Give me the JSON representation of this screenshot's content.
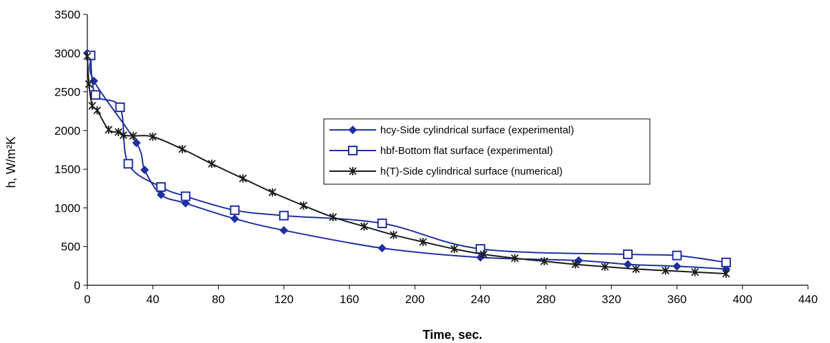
{
  "chart_data": {
    "type": "line",
    "title": "",
    "xlabel": "Time, sec.",
    "ylabel": "h, W/m²K",
    "xlim": [
      0,
      440
    ],
    "ylim": [
      0,
      3500
    ],
    "xticks": [
      0,
      40,
      80,
      120,
      160,
      200,
      240,
      280,
      320,
      360,
      400,
      440
    ],
    "yticks": [
      0,
      500,
      1000,
      1500,
      2000,
      2500,
      3000,
      3500
    ],
    "grid": false,
    "legend_position": "center-right",
    "series": [
      {
        "name": "hcy-Side cylindrical surface (experimental)",
        "color": "#1f2fa0",
        "marker": "diamond",
        "x": [
          0,
          2,
          4,
          30,
          35,
          45,
          60,
          90,
          120,
          180,
          240,
          300,
          330,
          360,
          390
        ],
        "y": [
          3000,
          2950,
          2640,
          1840,
          1490,
          1170,
          1060,
          860,
          710,
          480,
          360,
          320,
          270,
          245,
          210
        ]
      },
      {
        "name": "hbf-Bottom flat surface (experimental)",
        "color": "#1f2fa0",
        "marker": "square",
        "x": [
          2,
          5,
          20,
          25,
          45,
          60,
          90,
          120,
          180,
          240,
          330,
          360,
          390
        ],
        "y": [
          2970,
          2460,
          2300,
          1570,
          1270,
          1150,
          970,
          900,
          800,
          470,
          400,
          385,
          295
        ]
      },
      {
        "name": "h(T)-Side cylindrical surface (numerical)",
        "color": "#1a1a1a",
        "marker": "star",
        "x": [
          0,
          1,
          3,
          6,
          13,
          19,
          22,
          28,
          40,
          58,
          76,
          95,
          113,
          132,
          150,
          169,
          187,
          205,
          224,
          242,
          261,
          279,
          298,
          316,
          335,
          353,
          371,
          390
        ],
        "y": [
          2960,
          2600,
          2320,
          2260,
          2010,
          1980,
          1940,
          1930,
          1920,
          1760,
          1570,
          1380,
          1200,
          1030,
          880,
          760,
          650,
          560,
          470,
          400,
          350,
          310,
          270,
          240,
          210,
          190,
          170,
          150
        ]
      }
    ]
  }
}
